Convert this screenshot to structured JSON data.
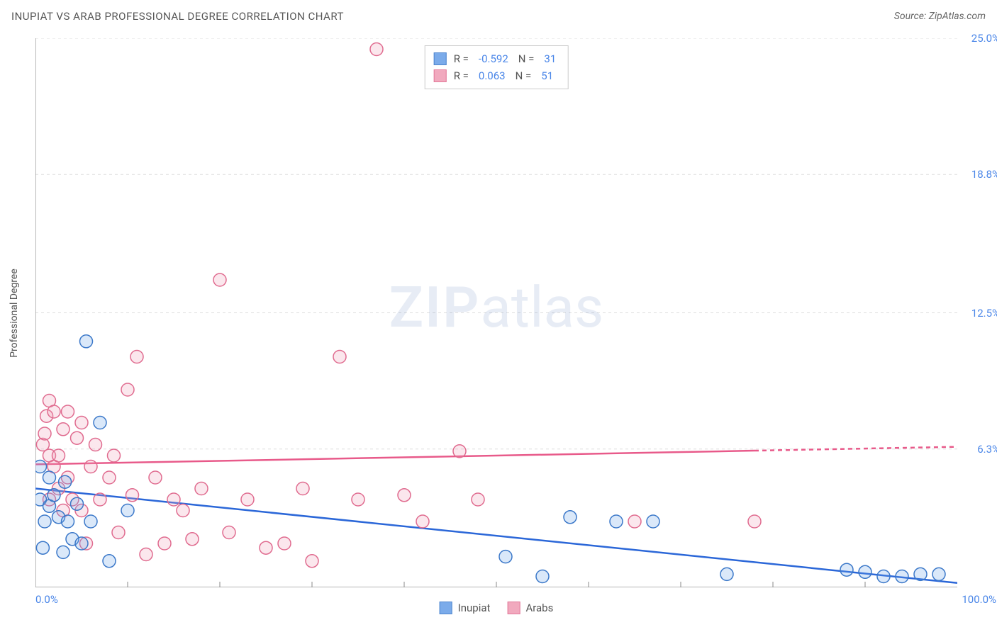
{
  "title": "INUPIAT VS ARAB PROFESSIONAL DEGREE CORRELATION CHART",
  "source_label": "Source: ",
  "source_value": "ZipAtlas.com",
  "watermark_a": "ZIP",
  "watermark_b": "atlas",
  "chart": {
    "type": "scatter",
    "background_color": "#ffffff",
    "grid_color": "#dddddd",
    "axis_color": "#888888",
    "xlim": [
      0,
      100
    ],
    "ylim": [
      0,
      25
    ],
    "x_ticks_minor": [
      10,
      20,
      30,
      40,
      50,
      60,
      70,
      80,
      90
    ],
    "x_tick_labels": [
      {
        "v": 0,
        "label": "0.0%"
      },
      {
        "v": 100,
        "label": "100.0%"
      }
    ],
    "y_grid": [
      6.3,
      12.5,
      18.8,
      25.0
    ],
    "y_tick_labels": [
      {
        "v": 6.3,
        "label": "6.3%"
      },
      {
        "v": 12.5,
        "label": "12.5%"
      },
      {
        "v": 18.8,
        "label": "18.8%"
      },
      {
        "v": 25.0,
        "label": "25.0%"
      }
    ],
    "y_axis_title": "Professional Degree",
    "label_fontsize": 14,
    "tick_fontsize": 15,
    "tick_color": "#4a86e8",
    "marker_radius": 9,
    "marker_stroke_width": 1.5,
    "marker_fill_opacity": 0.25,
    "line_width": 2.5,
    "series": {
      "inupiat": {
        "label": "Inupiat",
        "color": "#6da3e8",
        "stroke": "#3b78c9",
        "line_color": "#2b67d8",
        "trend": {
          "x1": 0,
          "y1": 4.5,
          "x2": 100,
          "y2": 0.2,
          "dash_from_x": null
        },
        "R": "-0.592",
        "N": "31",
        "points": [
          [
            0.5,
            4.0
          ],
          [
            0.5,
            5.5
          ],
          [
            0.8,
            1.8
          ],
          [
            1.0,
            3.0
          ],
          [
            1.5,
            3.7
          ],
          [
            1.5,
            5.0
          ],
          [
            2.0,
            4.2
          ],
          [
            2.5,
            3.2
          ],
          [
            3.0,
            1.6
          ],
          [
            3.2,
            4.8
          ],
          [
            3.5,
            3.0
          ],
          [
            4.0,
            2.2
          ],
          [
            4.5,
            3.8
          ],
          [
            5.0,
            2.0
          ],
          [
            5.5,
            11.2
          ],
          [
            6.0,
            3.0
          ],
          [
            7.0,
            7.5
          ],
          [
            8.0,
            1.2
          ],
          [
            10.0,
            3.5
          ],
          [
            51.0,
            1.4
          ],
          [
            55.0,
            0.5
          ],
          [
            58.0,
            3.2
          ],
          [
            63.0,
            3.0
          ],
          [
            67.0,
            3.0
          ],
          [
            75.0,
            0.6
          ],
          [
            88.0,
            0.8
          ],
          [
            90.0,
            0.7
          ],
          [
            92.0,
            0.5
          ],
          [
            94.0,
            0.5
          ],
          [
            96.0,
            0.6
          ],
          [
            98.0,
            0.6
          ]
        ]
      },
      "arabs": {
        "label": "Arabs",
        "color": "#f0a0b8",
        "stroke": "#e06b8f",
        "line_color": "#e85a8a",
        "trend": {
          "x1": 0,
          "y1": 5.6,
          "x2": 100,
          "y2": 6.4,
          "dash_from_x": 78
        },
        "R": "0.063",
        "N": "51",
        "points": [
          [
            0.8,
            6.5
          ],
          [
            1.0,
            7.0
          ],
          [
            1.2,
            7.8
          ],
          [
            1.5,
            6.0
          ],
          [
            1.5,
            8.5
          ],
          [
            1.5,
            4.0
          ],
          [
            2.0,
            5.5
          ],
          [
            2.0,
            8.0
          ],
          [
            2.5,
            6.0
          ],
          [
            2.5,
            4.5
          ],
          [
            3.0,
            7.2
          ],
          [
            3.0,
            3.5
          ],
          [
            3.5,
            5.0
          ],
          [
            3.5,
            8.0
          ],
          [
            4.0,
            4.0
          ],
          [
            4.5,
            6.8
          ],
          [
            5.0,
            3.5
          ],
          [
            5.0,
            7.5
          ],
          [
            5.5,
            2.0
          ],
          [
            6.0,
            5.5
          ],
          [
            6.5,
            6.5
          ],
          [
            7.0,
            4.0
          ],
          [
            8.0,
            5.0
          ],
          [
            8.5,
            6.0
          ],
          [
            9.0,
            2.5
          ],
          [
            10.0,
            9.0
          ],
          [
            10.5,
            4.2
          ],
          [
            11.0,
            10.5
          ],
          [
            12.0,
            1.5
          ],
          [
            13.0,
            5.0
          ],
          [
            14.0,
            2.0
          ],
          [
            15.0,
            4.0
          ],
          [
            16.0,
            3.5
          ],
          [
            17.0,
            2.2
          ],
          [
            18.0,
            4.5
          ],
          [
            20.0,
            14.0
          ],
          [
            21.0,
            2.5
          ],
          [
            23.0,
            4.0
          ],
          [
            25.0,
            1.8
          ],
          [
            27.0,
            2.0
          ],
          [
            29.0,
            4.5
          ],
          [
            30.0,
            1.2
          ],
          [
            33.0,
            10.5
          ],
          [
            35.0,
            4.0
          ],
          [
            37.0,
            24.5
          ],
          [
            40.0,
            4.2
          ],
          [
            42.0,
            3.0
          ],
          [
            46.0,
            6.2
          ],
          [
            48.0,
            4.0
          ],
          [
            65.0,
            3.0
          ],
          [
            78.0,
            3.0
          ]
        ]
      }
    }
  }
}
